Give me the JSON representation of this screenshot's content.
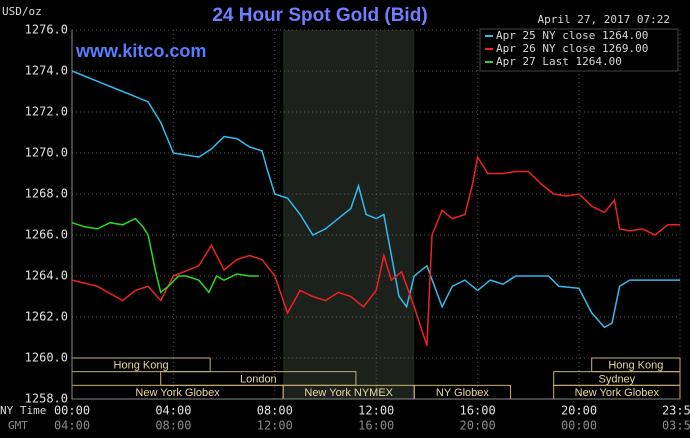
{
  "chart_data": {
    "type": "line",
    "title": "24 Hour Spot Gold (Bid)",
    "y_label": "USD/oz",
    "timestamp": "April 27, 2017 07:22",
    "watermark": "www.kitco.com",
    "x_row_labels": [
      "NY Time",
      "GMT"
    ],
    "xlim": [
      0,
      23.983
    ],
    "xticks": [
      {
        "value": 0,
        "label": "00:00"
      },
      {
        "value": 4,
        "label": "04:00"
      },
      {
        "value": 8,
        "label": "08:00"
      },
      {
        "value": 12,
        "label": "12:00"
      },
      {
        "value": 16,
        "label": "16:00"
      },
      {
        "value": 20,
        "label": "20:00"
      },
      {
        "value": 23.983,
        "label": "23:59"
      }
    ],
    "gmt_labels": [
      "04:00",
      "08:00",
      "12:00",
      "16:00",
      "20:00",
      "00:00",
      "03:59"
    ],
    "ylim": [
      1258,
      1276
    ],
    "yticks": [
      {
        "value": 1258,
        "label": "1258.0"
      },
      {
        "value": 1260,
        "label": "1260.0"
      },
      {
        "value": 1262,
        "label": "1262.0"
      },
      {
        "value": 1264,
        "label": "1264.0"
      },
      {
        "value": 1266,
        "label": "1266.0"
      },
      {
        "value": 1268,
        "label": "1268.0"
      },
      {
        "value": 1270,
        "label": "1270.0"
      },
      {
        "value": 1272,
        "label": "1272.0"
      },
      {
        "value": 1274,
        "label": "1274.0"
      },
      {
        "value": 1276,
        "label": "1276.0"
      }
    ],
    "grid": true,
    "shaded_range": [
      8.33,
      13.5
    ],
    "sessions": [
      {
        "label": "Hong Kong",
        "start": 0,
        "end": 5.45,
        "row": 0
      },
      {
        "label": "Hong Kong",
        "start": 20.5,
        "end": 23.983,
        "row": 0
      },
      {
        "label": "London",
        "start": 3.5,
        "end": 11.2,
        "row": 1
      },
      {
        "label": "Sydney",
        "start": 19,
        "end": 23.983,
        "row": 1
      },
      {
        "label": "New York Globex",
        "start": 0,
        "end": 8.33,
        "row": 2
      },
      {
        "label": "New York NYMEX",
        "start": 8.33,
        "end": 13.5,
        "row": 2
      },
      {
        "label": "NY Globex",
        "start": 13.5,
        "end": 17.3,
        "row": 2
      },
      {
        "label": "New York Globex",
        "start": 19,
        "end": 23.983,
        "row": 2
      }
    ],
    "series": [
      {
        "name": "Apr 25 NY close 1264.00",
        "color": "#33bbee",
        "x": [
          0,
          1,
          2,
          3,
          3.5,
          4,
          5,
          5.5,
          6,
          6.5,
          7,
          7.5,
          7.7,
          8,
          8.5,
          9,
          9.5,
          10,
          10.5,
          11,
          11.3,
          11.6,
          12,
          12.3,
          12.6,
          12.9,
          13.2,
          13.5,
          14,
          14.3,
          14.6,
          15,
          15.5,
          16,
          16.5,
          17,
          17.5,
          18,
          18.8,
          19.2,
          20,
          20.5,
          21,
          21.3,
          21.6,
          22,
          23,
          23.983
        ],
        "values": [
          1274,
          1273.5,
          1273,
          1272.5,
          1271.5,
          1270,
          1269.8,
          1270.2,
          1270.8,
          1270.7,
          1270.3,
          1270.1,
          1269.2,
          1268,
          1267.8,
          1267,
          1266,
          1266.3,
          1266.8,
          1267.3,
          1268.4,
          1267,
          1266.8,
          1267,
          1265,
          1263,
          1262.5,
          1264,
          1264.5,
          1263.5,
          1262.5,
          1263.5,
          1263.8,
          1263.3,
          1263.8,
          1263.6,
          1264,
          1264,
          1264,
          1263.5,
          1263.4,
          1262.2,
          1261.5,
          1261.7,
          1263.5,
          1263.8,
          1263.8,
          1263.8
        ]
      },
      {
        "name": "Apr 26 NY close 1269.00",
        "color": "#ee2222",
        "x": [
          0,
          1,
          2,
          2.5,
          3,
          3.5,
          4,
          5,
          5.5,
          6,
          6.5,
          7,
          7.5,
          8,
          8.5,
          9,
          9.5,
          10,
          10.5,
          11,
          11.5,
          12,
          12.3,
          12.6,
          13,
          13.5,
          14,
          14.2,
          14.6,
          15,
          15.5,
          15.8,
          16,
          16.4,
          17,
          17.5,
          18,
          18.5,
          19,
          19.5,
          20,
          20.5,
          21,
          21.4,
          21.6,
          22,
          22.5,
          23,
          23.5,
          23.983
        ],
        "values": [
          1263.8,
          1263.5,
          1262.8,
          1263.3,
          1263.5,
          1262.8,
          1264,
          1264.5,
          1265.5,
          1264.3,
          1264.8,
          1265,
          1264.8,
          1264,
          1262.2,
          1263.3,
          1263,
          1262.8,
          1263.2,
          1263,
          1262.5,
          1263.3,
          1265,
          1263.8,
          1264.2,
          1262.5,
          1260.6,
          1266,
          1267.2,
          1266.8,
          1267,
          1268.5,
          1269.8,
          1269,
          1269,
          1269.1,
          1269.1,
          1268.5,
          1268,
          1267.9,
          1268,
          1267.4,
          1267.1,
          1267.7,
          1266.3,
          1266.2,
          1266.3,
          1266,
          1266.5,
          1266.5
        ]
      },
      {
        "name": "Apr 27 Last 1264.00",
        "color": "#22dd22",
        "x": [
          0,
          0.5,
          1,
          1.5,
          2,
          2.5,
          2.8,
          3,
          3.3,
          3.5,
          3.8,
          4.2,
          4.5,
          5,
          5.4,
          5.7,
          6,
          6.5,
          7,
          7.37
        ],
        "values": [
          1266.6,
          1266.4,
          1266.3,
          1266.6,
          1266.5,
          1266.8,
          1266.4,
          1266,
          1264.2,
          1263.2,
          1263.5,
          1264,
          1264,
          1263.8,
          1263.2,
          1264,
          1263.8,
          1264.1,
          1264,
          1264
        ]
      }
    ]
  }
}
